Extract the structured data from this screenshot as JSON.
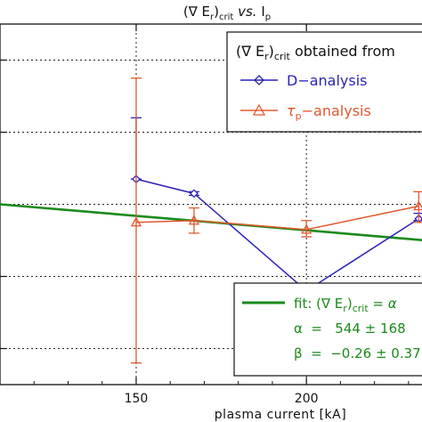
{
  "chart_data": {
    "type": "line",
    "title": "(∇ Er)crit vs. Ip",
    "xlabel": "plasma current [kA]",
    "ylabel": "",
    "xlim": [
      110,
      235
    ],
    "ylim": [
      0,
      10
    ],
    "x_ticks": [
      150,
      200
    ],
    "y_ticks": [
      1,
      3,
      5,
      7,
      9
    ],
    "grid": true,
    "legend_title": "(∇ Er)crit obtained from",
    "legend_position": "top-right",
    "series": [
      {
        "name": "D−analysis",
        "color": "#2b22b8",
        "marker": "diamond",
        "x": [
          150,
          167,
          200,
          233
        ],
        "y": [
          5.7,
          5.3,
          2.6,
          4.6
        ],
        "err_low": [
          5.7,
          5.25,
          2.45,
          4.55
        ],
        "err_high": [
          7.4,
          5.35,
          2.75,
          4.75
        ]
      },
      {
        "name": "τp−analysis",
        "color": "#e2582e",
        "marker": "triangle",
        "x": [
          150,
          167,
          200,
          233
        ],
        "y": [
          4.5,
          4.55,
          4.3,
          4.95
        ],
        "err_low": [
          0.6,
          4.2,
          4.1,
          4.5
        ],
        "err_high": [
          8.5,
          4.9,
          4.55,
          5.35
        ]
      }
    ],
    "fit": {
      "name": "fit",
      "color": "#1a8a1a",
      "x": [
        110,
        235
      ],
      "y": [
        5.0,
        4.0
      ],
      "label": "fit: (∇ Er)crit = α",
      "alpha_text": "α  =   544 ± 168",
      "beta_text": "β  =  −0.26 ± 0.37"
    }
  }
}
